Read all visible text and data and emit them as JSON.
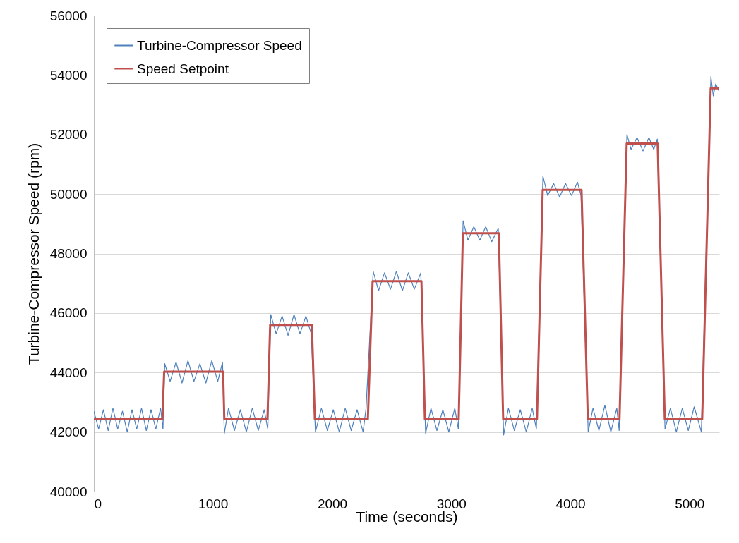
{
  "chart_data": {
    "type": "line",
    "xlabel": "Time (seconds)",
    "ylabel": "Turbine-Compressor Speed (rpm)",
    "xlim": [
      0,
      5250
    ],
    "xticks": [
      0,
      1000,
      2000,
      3000,
      4000,
      5000
    ],
    "ylim": [
      40000,
      56000
    ],
    "yticks": [
      40000,
      42000,
      44000,
      46000,
      48000,
      50000,
      52000,
      54000,
      56000
    ],
    "grid": "y",
    "legend": "top left",
    "series": [
      {
        "name": "Turbine-Compressor Speed",
        "color": "#4f81bd",
        "x": [
          0,
          40,
          80,
          120,
          160,
          200,
          240,
          280,
          320,
          360,
          400,
          440,
          480,
          520,
          560,
          580,
          595,
          640,
          690,
          740,
          790,
          840,
          890,
          940,
          990,
          1040,
          1080,
          1095,
          1130,
          1180,
          1230,
          1280,
          1330,
          1380,
          1430,
          1460,
          1485,
          1530,
          1580,
          1630,
          1680,
          1730,
          1780,
          1825,
          1860,
          1910,
          1960,
          2010,
          2060,
          2110,
          2160,
          2210,
          2260,
          2285,
          2345,
          2390,
          2440,
          2490,
          2540,
          2590,
          2640,
          2690,
          2745,
          2785,
          2830,
          2880,
          2930,
          2980,
          3030,
          3060,
          3100,
          3140,
          3190,
          3240,
          3290,
          3340,
          3395,
          3440,
          3480,
          3530,
          3580,
          3630,
          3680,
          3715,
          3770,
          3810,
          3860,
          3910,
          3960,
          4010,
          4060,
          4090,
          4150,
          4190,
          4240,
          4290,
          4340,
          4390,
          4410,
          4475,
          4510,
          4560,
          4610,
          4660,
          4700,
          4730,
          4795,
          4840,
          4890,
          4940,
          4990,
          5040,
          5100,
          5180,
          5200,
          5220,
          5249
        ],
        "values": [
          42700,
          42100,
          42750,
          42050,
          42800,
          42100,
          42700,
          42000,
          42750,
          42100,
          42800,
          42050,
          42750,
          42100,
          42800,
          42100,
          44300,
          43700,
          44350,
          43650,
          44400,
          43700,
          44300,
          43650,
          44400,
          43700,
          44350,
          41950,
          42800,
          42050,
          42750,
          42000,
          42800,
          42050,
          42750,
          42100,
          45950,
          45300,
          45900,
          45250,
          45950,
          45300,
          45900,
          45300,
          42000,
          42800,
          42050,
          42750,
          42000,
          42800,
          42050,
          42750,
          42000,
          42800,
          47400,
          46750,
          47350,
          46800,
          47400,
          46750,
          47350,
          46800,
          47350,
          41950,
          42800,
          42050,
          42750,
          42000,
          42800,
          42100,
          49100,
          48450,
          48900,
          48450,
          48900,
          48400,
          48850,
          41900,
          42800,
          42050,
          42750,
          42000,
          42800,
          42100,
          50600,
          49950,
          50350,
          49900,
          50350,
          49950,
          50400,
          49950,
          42000,
          42800,
          42050,
          42900,
          42000,
          42800,
          42050,
          52000,
          51500,
          51900,
          51450,
          51900,
          51500,
          51850,
          42100,
          42800,
          42000,
          42800,
          42050,
          42850,
          42000,
          53950,
          53300,
          53700,
          53450
        ]
      },
      {
        "name": "Speed Setpoint",
        "color": "#c0504d",
        "x": [
          0,
          575,
          590,
          1085,
          1095,
          1457,
          1480,
          1830,
          1855,
          2300,
          2340,
          2750,
          2779,
          3063,
          3098,
          3400,
          3436,
          3720,
          3768,
          4094,
          4147,
          4413,
          4473,
          4733,
          4793,
          5107,
          5178,
          5249
        ],
        "values": [
          42430,
          42430,
          44030,
          44030,
          42430,
          42430,
          45600,
          45600,
          42430,
          42430,
          47070,
          47070,
          42430,
          42430,
          48680,
          48680,
          42430,
          42430,
          50140,
          50140,
          42430,
          42430,
          51700,
          51700,
          42430,
          42430,
          53550,
          53550
        ]
      }
    ]
  }
}
